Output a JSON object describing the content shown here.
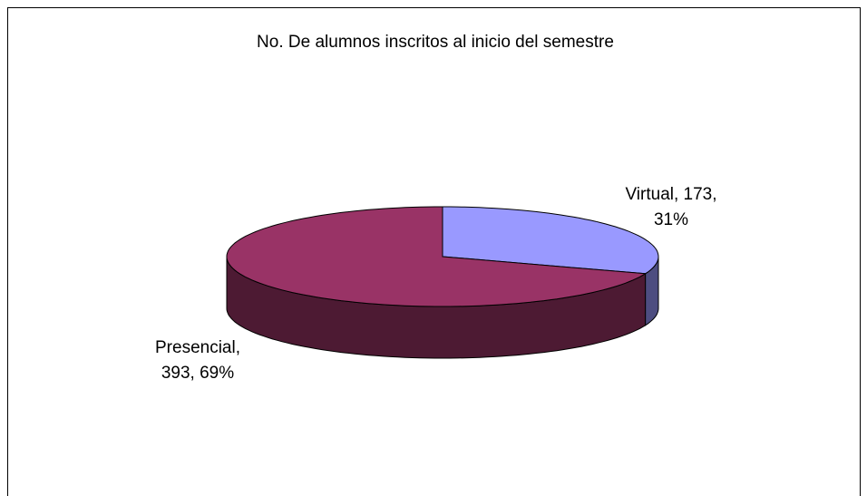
{
  "chart_data": {
    "type": "pie",
    "title": "No. De alumnos inscritos al inicio del semestre",
    "categories": [
      "Virtual",
      "Presencial"
    ],
    "values": [
      173,
      393
    ],
    "value_labels": [
      "Virtual, 173,\n31%",
      "Presencial,\n393, 69%"
    ],
    "colors": [
      "#9999ff",
      "#993366"
    ],
    "side_colors": [
      "#4d4d80",
      "#4d1a33"
    ]
  }
}
